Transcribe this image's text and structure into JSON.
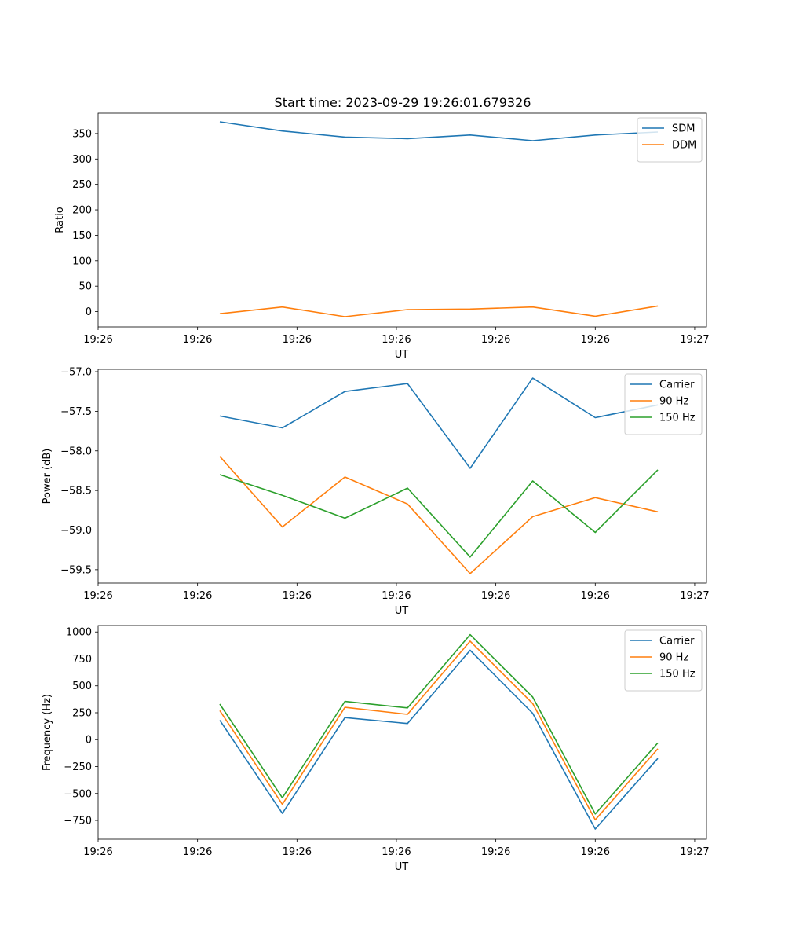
{
  "title": "Start time: 2023-09-29 19:26:01.679326",
  "chart_data": [
    {
      "type": "line",
      "title": "Start time: 2023-09-29 19:26:01.679326",
      "xlabel": "UT",
      "ylabel": "Ratio",
      "x": [
        0.35,
        0.53,
        0.71,
        0.89,
        1.07,
        1.25,
        1.43,
        1.61
      ],
      "x_range": [
        0.0,
        1.75
      ],
      "x_ticks": [
        0.0,
        0.286,
        0.572,
        0.858,
        1.144,
        1.43,
        1.716
      ],
      "x_tick_labels": [
        "19:26",
        "19:26",
        "19:26",
        "19:26",
        "19:26",
        "19:26",
        "19:27"
      ],
      "ylim": [
        -30,
        390
      ],
      "y_ticks": [
        0,
        50,
        100,
        150,
        200,
        250,
        300,
        350
      ],
      "y_tick_labels": [
        "0",
        "50",
        "100",
        "150",
        "200",
        "250",
        "300",
        "350"
      ],
      "legend_position": "top-right",
      "series": [
        {
          "name": "SDM",
          "color": "#1f77b4",
          "values": [
            373,
            355,
            343,
            340,
            347,
            336,
            347,
            353
          ]
        },
        {
          "name": "DDM",
          "color": "#ff7f0e",
          "values": [
            -4,
            9,
            -10,
            4,
            5,
            9,
            -9,
            11
          ]
        }
      ]
    },
    {
      "type": "line",
      "xlabel": "UT",
      "ylabel": "Power (dB)",
      "x": [
        0.35,
        0.53,
        0.71,
        0.89,
        1.07,
        1.25,
        1.43,
        1.61
      ],
      "x_range": [
        0.0,
        1.75
      ],
      "x_ticks": [
        0.0,
        0.286,
        0.572,
        0.858,
        1.144,
        1.43,
        1.716
      ],
      "x_tick_labels": [
        "19:26",
        "19:26",
        "19:26",
        "19:26",
        "19:26",
        "19:26",
        "19:27"
      ],
      "ylim": [
        -59.67,
        -56.97
      ],
      "y_ticks": [
        -59.5,
        -59.0,
        -58.5,
        -58.0,
        -57.5,
        -57.0
      ],
      "y_tick_labels": [
        "−59.5",
        "−59.0",
        "−58.5",
        "−58.0",
        "−57.5",
        "−57.0"
      ],
      "legend_position": "top-right",
      "series": [
        {
          "name": "Carrier",
          "color": "#1f77b4",
          "values": [
            -57.56,
            -57.71,
            -57.25,
            -57.15,
            -58.22,
            -57.08,
            -57.58,
            -57.42
          ]
        },
        {
          "name": "90 Hz",
          "color": "#ff7f0e",
          "values": [
            -58.07,
            -58.96,
            -58.33,
            -58.67,
            -59.55,
            -58.83,
            -58.59,
            -58.77
          ]
        },
        {
          "name": "150 Hz",
          "color": "#2ca02c",
          "values": [
            -58.3,
            -58.56,
            -58.85,
            -58.47,
            -59.34,
            -58.38,
            -59.03,
            -58.24
          ]
        }
      ]
    },
    {
      "type": "line",
      "xlabel": "UT",
      "ylabel": "Frequency (Hz)",
      "x": [
        0.35,
        0.53,
        0.71,
        0.89,
        1.07,
        1.25,
        1.43,
        1.61
      ],
      "x_range": [
        0.0,
        1.75
      ],
      "x_ticks": [
        0.0,
        0.286,
        0.572,
        0.858,
        1.144,
        1.43,
        1.716
      ],
      "x_tick_labels": [
        "19:26",
        "19:26",
        "19:26",
        "19:26",
        "19:26",
        "19:26",
        "19:27"
      ],
      "ylim": [
        -925,
        1060
      ],
      "y_ticks": [
        -750,
        -500,
        -250,
        0,
        250,
        500,
        750,
        1000
      ],
      "y_tick_labels": [
        "−750",
        "−500",
        "−250",
        "0",
        "250",
        "500",
        "750",
        "1000"
      ],
      "legend_position": "top-right",
      "series": [
        {
          "name": "Carrier",
          "color": "#1f77b4",
          "values": [
            180,
            -685,
            205,
            150,
            830,
            245,
            -830,
            -175
          ]
        },
        {
          "name": "90 Hz",
          "color": "#ff7f0e",
          "values": [
            270,
            -600,
            300,
            235,
            915,
            335,
            -745,
            -85
          ]
        },
        {
          "name": "150 Hz",
          "color": "#2ca02c",
          "values": [
            330,
            -540,
            355,
            295,
            975,
            395,
            -690,
            -30
          ]
        }
      ]
    }
  ]
}
